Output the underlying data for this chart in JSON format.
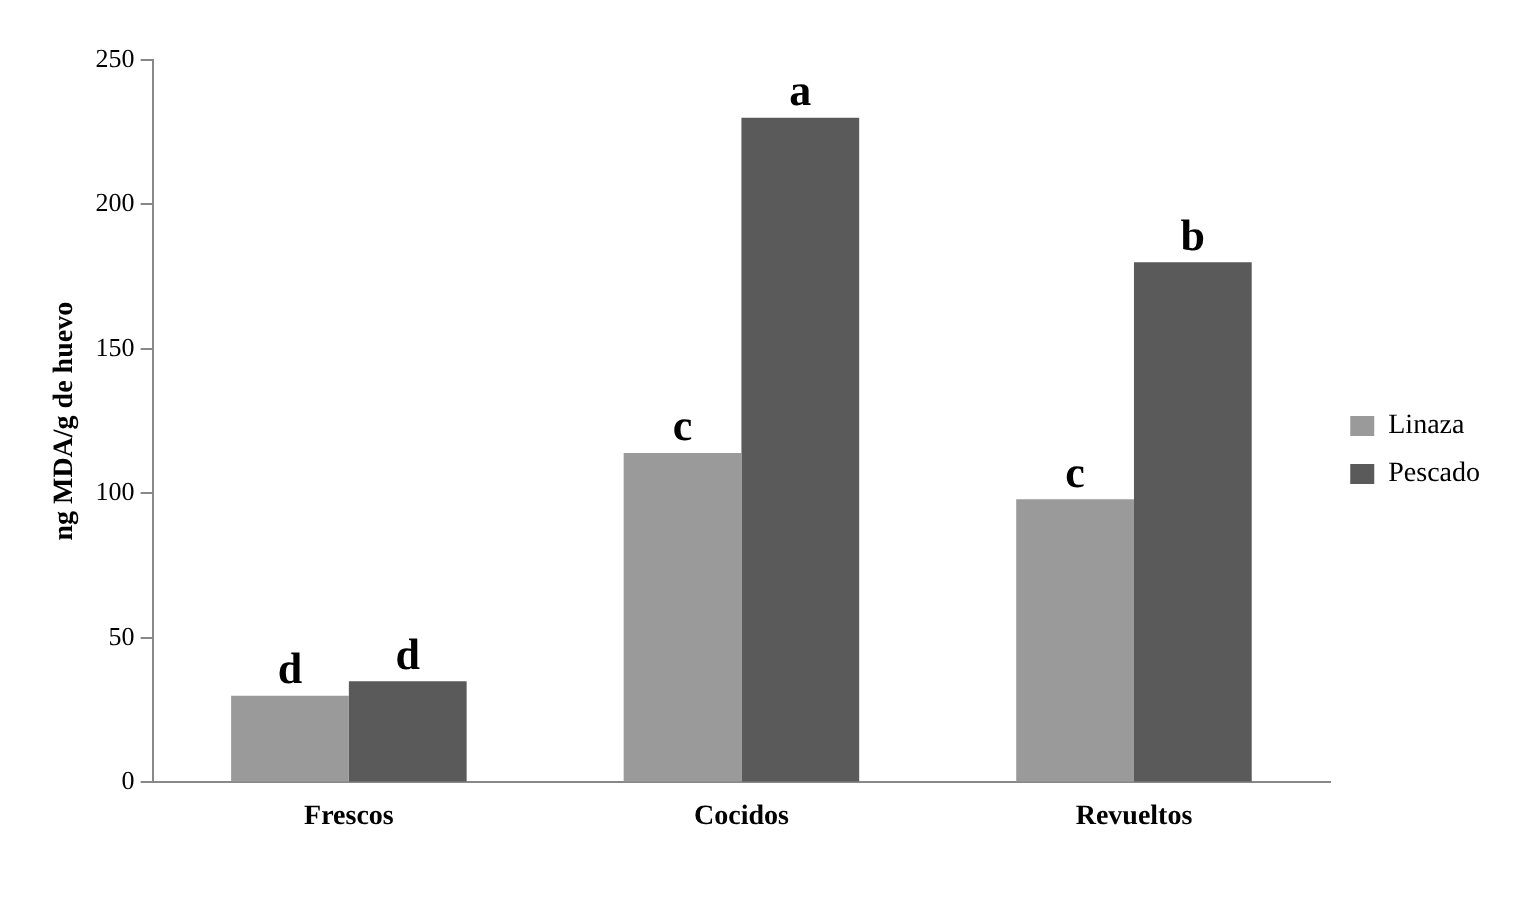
{
  "chart_data": {
    "type": "bar",
    "ylabel": "ng MDA/g de huevo",
    "categories": [
      "Frescos",
      "Cocidos",
      "Revueltos"
    ],
    "series": [
      {
        "name": "Linaza",
        "color": "#9a9a9a",
        "values": [
          30,
          114,
          98
        ],
        "value_labels": [
          "d",
          "c",
          "c"
        ]
      },
      {
        "name": "Pescado",
        "color": "#5a5a5a",
        "values": [
          35,
          230,
          180
        ],
        "value_labels": [
          "d",
          "a",
          "b"
        ]
      }
    ],
    "ylim": [
      0,
      250
    ],
    "yticks": [
      0,
      50,
      100,
      150,
      200,
      250
    ],
    "grid": false,
    "legend": "right"
  }
}
